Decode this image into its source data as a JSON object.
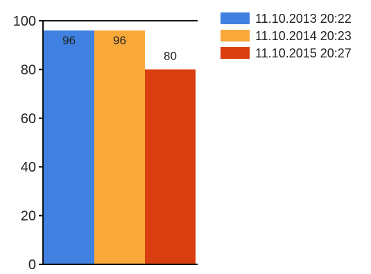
{
  "chart_data": {
    "type": "bar",
    "title": "",
    "xlabel": "",
    "ylabel": "",
    "ylim": [
      0,
      100
    ],
    "yticks": [
      0,
      20,
      40,
      60,
      80,
      100
    ],
    "grid": false,
    "legend_position": "top-right",
    "series": [
      {
        "name": "11.10.2013 20:22",
        "value": 96,
        "label": "96",
        "color": "#3f80e0"
      },
      {
        "name": "11.10.2014 20:23",
        "value": 96,
        "label": "96",
        "color": "#f8a93a"
      },
      {
        "name": "11.10.2015 20:27",
        "value": 80,
        "label": "80",
        "color": "#d93f0e"
      }
    ]
  }
}
